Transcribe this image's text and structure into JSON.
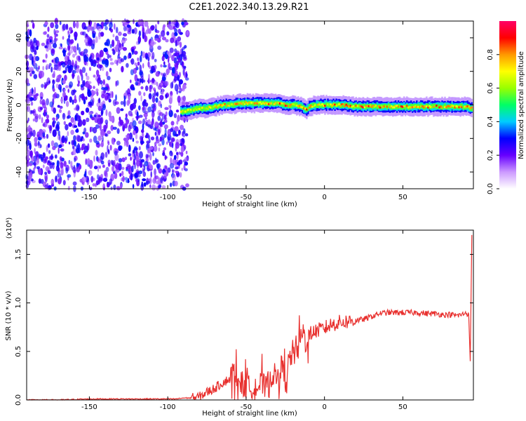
{
  "page_title": "C2E1.2022.340.13.29.R21",
  "chart_data": [
    {
      "type": "heatmap",
      "title": "C2E1.2022.340.13.29.R21",
      "xlabel": "Height of straight line (km)",
      "ylabel": "Frequency (Hz)",
      "xlim": [
        -190,
        95
      ],
      "ylim": [
        -50,
        50
      ],
      "x_ticks": [
        -150,
        -100,
        -50,
        0,
        50
      ],
      "x_tick_labels": [
        "-150",
        "-100",
        "-50",
        "0",
        "50"
      ],
      "y_ticks": [
        -40,
        -20,
        0,
        20,
        40
      ],
      "y_tick_labels": [
        "-40",
        "-20",
        "0",
        "20",
        "40"
      ],
      "noise_region_x": [
        -190,
        -90
      ],
      "signal_ridge": {
        "x": [
          -92,
          -85,
          -80,
          -75,
          -70,
          -65,
          -60,
          -55,
          -50,
          -45,
          -40,
          -35,
          -30,
          -25,
          -20,
          -15,
          -12,
          -10,
          -5,
          0,
          10,
          20,
          30,
          40,
          50,
          60,
          70,
          80,
          90,
          94
        ],
        "freq": [
          -4,
          -3,
          -2,
          -2,
          -1,
          0,
          0,
          1,
          1,
          1,
          1,
          1,
          1,
          0,
          0,
          -1,
          -3,
          -1,
          0,
          0,
          0,
          -1,
          -1,
          -1,
          -1,
          -1,
          -1,
          -1,
          -1,
          -2
        ]
      },
      "colorbar": {
        "label": "Normalized spectral amplitude",
        "range": [
          0,
          1
        ],
        "ticks": [
          0.0,
          0.2,
          0.4,
          0.6,
          0.8
        ],
        "tick_labels": [
          "0.0",
          "0.2",
          "0.4",
          "0.6",
          "0.8"
        ],
        "colors": [
          "#ffffff",
          "#cc99ff",
          "#6600ff",
          "#0000ff",
          "#00ccff",
          "#00ff66",
          "#99ff00",
          "#ffff00",
          "#ff9900",
          "#ff0000",
          "#ff0066"
        ]
      },
      "grid": false
    },
    {
      "type": "line",
      "xlabel": "Height of straight line (km)",
      "ylabel": "SNR (10 * v/v)",
      "y_multiplier_label": "(x10⁴)",
      "xlim": [
        -190,
        95
      ],
      "ylim": [
        0,
        1.75
      ],
      "x_ticks": [
        -150,
        -100,
        -50,
        0,
        50
      ],
      "x_tick_labels": [
        "-150",
        "-100",
        "-50",
        "0",
        "50"
      ],
      "y_ticks": [
        0.0,
        0.5,
        1.0,
        1.5
      ],
      "y_tick_labels": [
        "0.0",
        "0.5",
        "1.0",
        "1.5"
      ],
      "line_color": "#e8302e",
      "grid": false,
      "series": [
        {
          "x": [
            -190,
            -170,
            -150,
            -130,
            -110,
            -100,
            -95,
            -90,
            -85,
            -80,
            -75,
            -70,
            -65,
            -60,
            -58,
            -55,
            -52,
            -50,
            -48,
            -45,
            -42,
            -40,
            -38,
            -35,
            -33,
            -30,
            -28,
            -25,
            -22,
            -20,
            -18,
            -16,
            -15,
            -14,
            -12,
            -10,
            -8,
            -6,
            -5,
            -3,
            0,
            5,
            10,
            15,
            20,
            25,
            30,
            35,
            40,
            45,
            50,
            55,
            60,
            65,
            70,
            75,
            80,
            85,
            88,
            90,
            92,
            93,
            94
          ],
          "y": [
            0.0,
            0.0,
            0.01,
            0.01,
            0.01,
            0.01,
            0.01,
            0.02,
            0.02,
            0.03,
            0.08,
            0.12,
            0.18,
            0.22,
            0.3,
            0.2,
            0.16,
            0.15,
            0.12,
            0.16,
            0.14,
            0.18,
            0.12,
            0.2,
            0.28,
            0.2,
            0.35,
            0.25,
            0.42,
            0.5,
            0.45,
            0.58,
            0.65,
            0.72,
            0.6,
            0.65,
            0.7,
            0.7,
            0.72,
            0.72,
            0.74,
            0.78,
            0.8,
            0.81,
            0.82,
            0.83,
            0.86,
            0.89,
            0.9,
            0.9,
            0.9,
            0.9,
            0.9,
            0.89,
            0.89,
            0.88,
            0.88,
            0.87,
            0.88,
            0.9,
            0.88,
            0.4,
            1.7
          ]
        }
      ]
    }
  ]
}
